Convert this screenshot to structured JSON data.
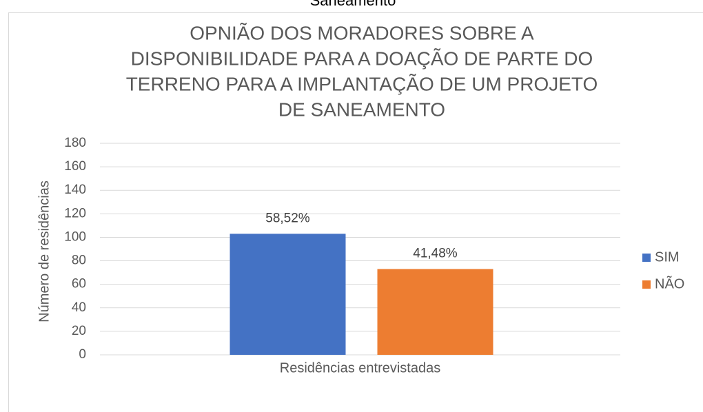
{
  "caption": "Saneamento",
  "chart_data": {
    "type": "bar",
    "title": [
      "OPNIÃO DOS MORADORES SOBRE A",
      "DISPONIBILIDADE PARA A DOAÇÃO DE PARTE DO",
      "TERRENO PARA A IMPLANTAÇÃO DE UM PROJETO",
      "DE SANEAMENTO"
    ],
    "y_label": "Número de residências",
    "categories": [
      "Residências entrevistadas"
    ],
    "series": [
      {
        "name": "SIM",
        "color": "#4472c4",
        "values": [
          103
        ],
        "value_labels": [
          "58,52%"
        ]
      },
      {
        "name": "NÃO",
        "color": "#ed7d31",
        "values": [
          73
        ],
        "value_labels": [
          "41,48%"
        ]
      }
    ],
    "ylim": [
      0,
      180
    ],
    "yticks": [
      0,
      20,
      40,
      60,
      80,
      100,
      120,
      140,
      160,
      180
    ],
    "grid": true,
    "legend": "right"
  }
}
